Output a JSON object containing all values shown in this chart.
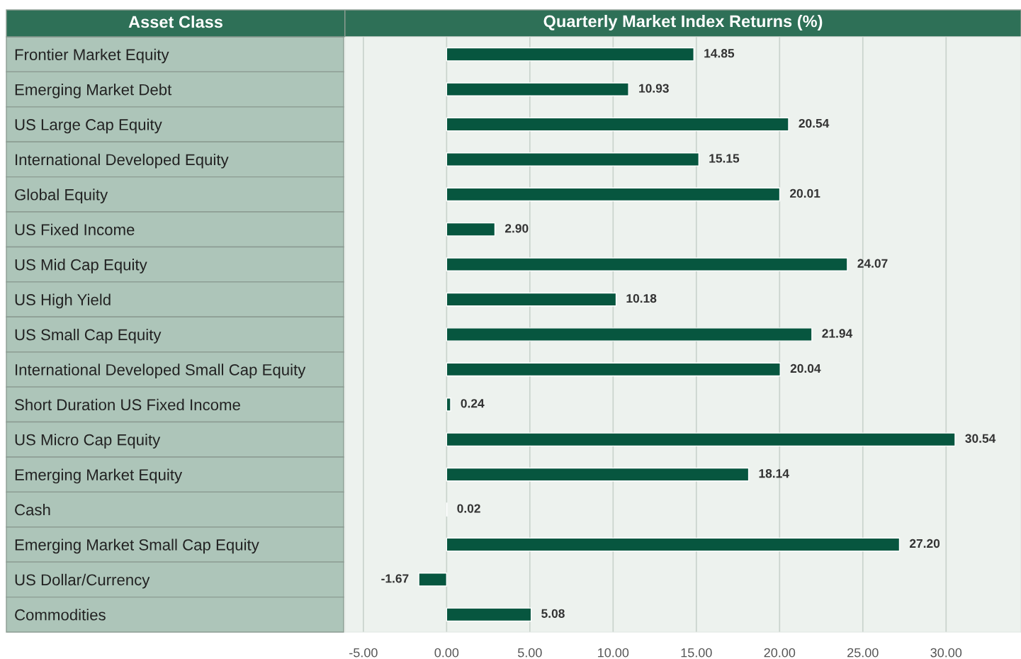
{
  "chart_data": {
    "type": "bar",
    "orientation": "horizontal",
    "title": "Quarterly Market Index Returns (%)",
    "ylabel": "Asset Class",
    "categories": [
      "Frontier Market Equity",
      "Emerging Market Debt",
      "US Large Cap Equity",
      "International Developed Equity",
      "Global Equity",
      "US Fixed Income",
      "US Mid Cap Equity",
      "US High Yield",
      "US Small Cap Equity",
      "International Developed Small Cap Equity",
      "Short Duration US Fixed Income",
      "US Micro Cap Equity",
      "Emerging Market Equity",
      "Cash",
      "Emerging Market Small Cap Equity",
      "US Dollar/Currency",
      "Commodities"
    ],
    "values": [
      14.85,
      10.93,
      20.54,
      15.15,
      20.01,
      2.9,
      24.07,
      10.18,
      21.94,
      20.04,
      0.24,
      30.54,
      18.14,
      0.02,
      27.2,
      -1.67,
      5.08
    ],
    "value_labels": [
      "14.85",
      "10.93",
      "20.54",
      "15.15",
      "20.01",
      "2.90",
      "24.07",
      "10.18",
      "21.94",
      "20.04",
      "0.24",
      "30.54",
      "18.14",
      "0.02",
      "27.20",
      "-1.67",
      "5.08"
    ],
    "color": "#07563f",
    "xlim": [
      -6.1,
      34.5
    ],
    "xticks": [
      {
        "value": -5,
        "label": "-5.00"
      },
      {
        "value": 0,
        "label": "0.00"
      },
      {
        "value": 5,
        "label": "5.00"
      },
      {
        "value": 10,
        "label": "10.00"
      },
      {
        "value": 15,
        "label": "15.00"
      },
      {
        "value": 20,
        "label": "20.00"
      },
      {
        "value": 25,
        "label": "25.00"
      },
      {
        "value": 30,
        "label": "30.00"
      }
    ],
    "grid": "x"
  }
}
